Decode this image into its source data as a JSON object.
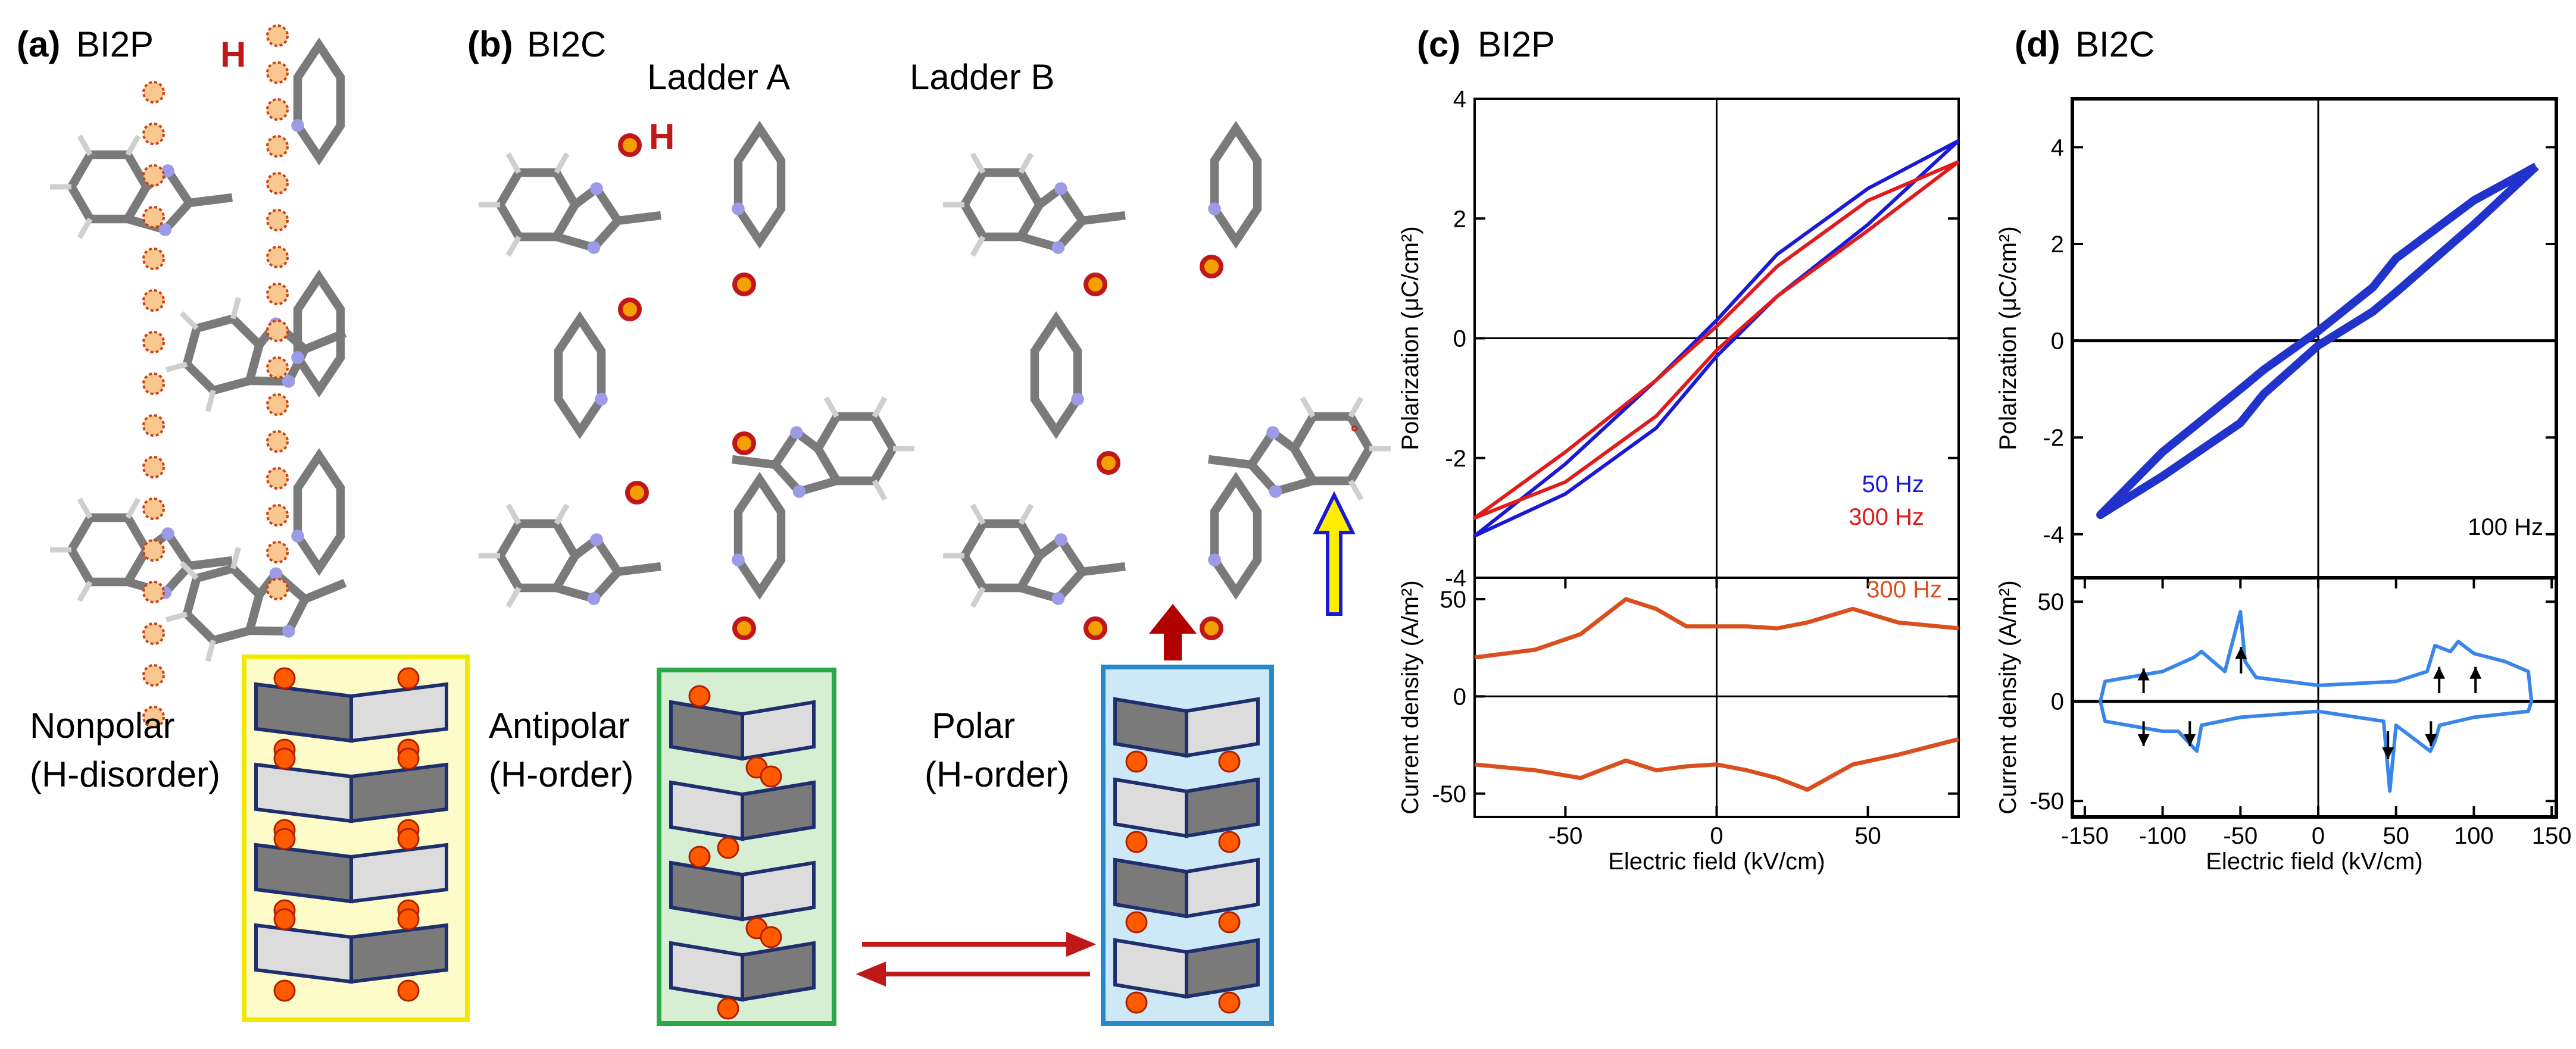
{
  "panel_a": {
    "label": "(a)",
    "title": "BI2P",
    "h_label": "H",
    "state": "Nonpolar",
    "order": "(H-disorder)"
  },
  "panel_b": {
    "label": "(b)",
    "title": "BI2C",
    "h_label": "H",
    "ladder_a": "Ladder A",
    "ladder_b": "Ladder B",
    "state_1": "Antipolar",
    "order_1": "(H-order)",
    "state_2": "Polar",
    "order_2": "(H-order)"
  },
  "chart_data": [
    {
      "type": "line",
      "label": "(c)",
      "title": "BI2P",
      "ylabel": "Polarization (μC/cm²)",
      "xlim": [
        -80,
        80
      ],
      "ylim": [
        -4,
        4
      ],
      "yticks": [
        -4,
        -2,
        0,
        2,
        4
      ],
      "series": [
        {
          "name": "50 Hz",
          "color": "#1a1ad6",
          "x": [
            80,
            50,
            20,
            0,
            -20,
            -50,
            -80,
            -50,
            -20,
            0,
            20,
            50,
            80
          ],
          "values": [
            3.3,
            2.5,
            1.4,
            0.3,
            -0.7,
            -2.1,
            -3.3,
            -2.6,
            -1.5,
            -0.3,
            0.7,
            1.9,
            3.3
          ]
        },
        {
          "name": "300 Hz",
          "color": "#e01b1b",
          "x": [
            80,
            50,
            20,
            0,
            -20,
            -50,
            -80,
            -50,
            -20,
            0,
            20,
            50,
            80
          ],
          "values": [
            2.95,
            2.3,
            1.2,
            0.2,
            -0.7,
            -1.9,
            -3.0,
            -2.4,
            -1.3,
            -0.2,
            0.7,
            1.8,
            2.95
          ]
        }
      ]
    },
    {
      "type": "line",
      "ylabel": "Current density (A/m²)",
      "xlabel": "Electric field (kV/cm)",
      "xlim": [
        -80,
        80
      ],
      "ylim": [
        -62,
        61
      ],
      "xticks": [
        -50,
        0,
        50
      ],
      "yticks": [
        -50,
        0,
        50
      ],
      "series": [
        {
          "name": "300 Hz",
          "color": "#d9501e",
          "x": [
            -80,
            -60,
            -45,
            -30,
            -20,
            -10,
            0,
            10,
            20,
            30,
            45,
            60,
            80,
            null,
            80,
            60,
            45,
            30,
            20,
            10,
            0,
            -10,
            -20,
            -30,
            -45,
            -60,
            -80
          ],
          "values": [
            20,
            24,
            32,
            50,
            45,
            36,
            36,
            36,
            35,
            38,
            45,
            38,
            35,
            null,
            -22,
            -30,
            -35,
            -48,
            -42,
            -38,
            -35,
            -36,
            -38,
            -33,
            -42,
            -38,
            -35
          ]
        }
      ]
    },
    {
      "type": "line",
      "label": "(d)",
      "title": "BI2C",
      "ylabel": "Polarization (μC/cm²)",
      "xlim": [
        -158,
        153
      ],
      "ylim": [
        -4.9,
        5.0
      ],
      "yticks": [
        -4,
        -2,
        0,
        2,
        4
      ],
      "series": [
        {
          "name": "100 Hz",
          "color": "#2233cc",
          "x": [
            140,
            100,
            50,
            35,
            0,
            -35,
            -50,
            -100,
            -140,
            -100,
            -50,
            -35,
            0,
            35,
            50,
            100,
            140
          ],
          "values": [
            3.6,
            2.9,
            1.7,
            1.1,
            0.2,
            -0.6,
            -1.0,
            -2.3,
            -3.6,
            -2.8,
            -1.7,
            -1.1,
            -0.1,
            0.6,
            1.0,
            2.4,
            3.6
          ]
        }
      ]
    },
    {
      "type": "line",
      "ylabel": "Current density  (A/m²)",
      "xlabel": "Electric field  (kV/cm)",
      "xlim": [
        -158,
        153
      ],
      "ylim": [
        -58,
        62
      ],
      "xticks": [
        -150,
        -100,
        -50,
        0,
        50,
        100,
        150
      ],
      "yticks": [
        -50,
        0,
        50
      ],
      "series": [
        {
          "color": "#3a86e8",
          "x": [
            -140,
            -137,
            -100,
            -80,
            -75,
            -60,
            -50,
            -47,
            -40,
            0,
            50,
            70,
            75,
            85,
            90,
            100,
            120,
            135,
            137,
            135,
            100,
            78,
            75,
            72,
            50,
            46,
            42,
            0,
            -50,
            -75,
            -78,
            -90,
            -100,
            -137,
            -140
          ],
          "values": [
            0,
            10,
            15,
            22,
            25,
            15,
            45,
            20,
            12,
            8,
            10,
            15,
            28,
            25,
            30,
            24,
            20,
            15,
            0,
            -5,
            -8,
            -12,
            -20,
            -25,
            -12,
            -45,
            -10,
            -5,
            -8,
            -12,
            -25,
            -15,
            -15,
            -10,
            0
          ]
        }
      ]
    }
  ]
}
